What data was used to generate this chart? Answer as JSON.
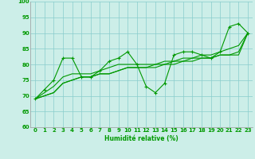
{
  "xlabel": "Humidité relative (%)",
  "background_color": "#cceee8",
  "grid_color": "#88cccc",
  "line_color": "#009900",
  "xlim": [
    -0.5,
    23.5
  ],
  "ylim": [
    60,
    100
  ],
  "yticks": [
    60,
    65,
    70,
    75,
    80,
    85,
    90,
    95,
    100
  ],
  "xticks": [
    0,
    1,
    2,
    3,
    4,
    5,
    6,
    7,
    8,
    9,
    10,
    11,
    12,
    13,
    14,
    15,
    16,
    17,
    18,
    19,
    20,
    21,
    22,
    23
  ],
  "series": [
    [
      69,
      72,
      75,
      82,
      82,
      76,
      76,
      78,
      81,
      82,
      84,
      80,
      73,
      71,
      74,
      83,
      84,
      84,
      83,
      82,
      84,
      92,
      93,
      90
    ],
    [
      69,
      71,
      73,
      76,
      77,
      77,
      77,
      78,
      79,
      80,
      80,
      80,
      80,
      80,
      81,
      81,
      82,
      82,
      83,
      83,
      84,
      85,
      86,
      90
    ],
    [
      69,
      70,
      71,
      74,
      75,
      76,
      76,
      77,
      77,
      78,
      79,
      79,
      79,
      79,
      80,
      80,
      81,
      81,
      82,
      82,
      83,
      83,
      84,
      90
    ],
    [
      69,
      70,
      71,
      74,
      75,
      76,
      76,
      77,
      77,
      78,
      79,
      79,
      79,
      80,
      80,
      81,
      81,
      82,
      82,
      82,
      83,
      83,
      83,
      90
    ]
  ],
  "marker_series": 0,
  "xlabel_fontsize": 5.5,
  "tick_fontsize": 5.0
}
